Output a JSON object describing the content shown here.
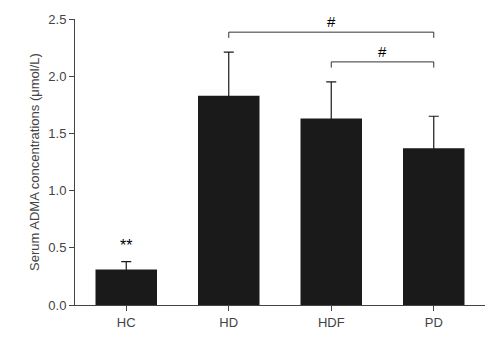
{
  "chart_data": {
    "type": "bar",
    "ylabel": "Serum ADMA concentrations (μmol/L)",
    "categories": [
      "HC",
      "HD",
      "HDF",
      "PD"
    ],
    "values": [
      0.31,
      1.83,
      1.63,
      1.37
    ],
    "errors": [
      0.07,
      0.38,
      0.32,
      0.28
    ],
    "color": "#1a1a1a",
    "ylim": [
      0,
      2.5
    ],
    "yticks": [
      {
        "value": 0,
        "label": "0.0"
      },
      0.5,
      {
        "value": 1,
        "label": "1.0"
      },
      1.5,
      {
        "value": 2,
        "label": "2.0"
      },
      2.5
    ],
    "grid": false,
    "annotations": [
      {
        "text": "**",
        "category": "HC"
      },
      {
        "text": "#",
        "from": "HD",
        "to": "PD"
      },
      {
        "text": "#",
        "from": "HDF",
        "to": "PD"
      }
    ]
  }
}
